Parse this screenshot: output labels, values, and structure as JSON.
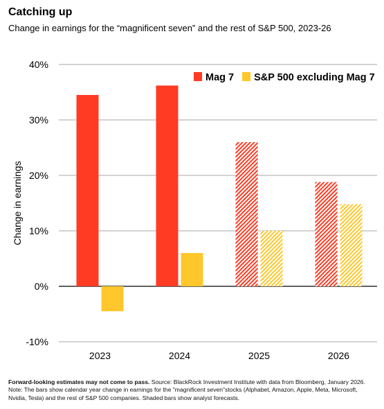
{
  "header": {
    "title": "Catching up",
    "subtitle": "Change in earnings for the “magnificent seven” and the rest of S&P 500, 2023-26"
  },
  "footnote": {
    "lead": "Forward-looking estimates may not come to pass.",
    "text": " Source: BlackRock Investment Institute with data from Bloomberg, January 2026. Note: The bars show calendar year change in earnings for the \"magnificent seven\"stocks (Alphabet, Amazon, Apple, Meta, Microsoft, Nvidia, Tesla) and the rest of S&P 500 companies. Shaded bars show analyst forecasts."
  },
  "chart_data": {
    "type": "bar",
    "categories": [
      "2023",
      "2024",
      "2025",
      "2026"
    ],
    "series": [
      {
        "name": "Mag 7",
        "values": [
          34.5,
          36.2,
          26.0,
          18.8
        ],
        "color": "#ff3b24"
      },
      {
        "name": "S&P 500 excluding Mag 7",
        "values": [
          -4.5,
          6.0,
          10.0,
          14.8
        ],
        "color": "#ffc72c"
      }
    ],
    "forecast_categories": [
      "2025",
      "2026"
    ],
    "ylabel": "Change in earnings",
    "xlabel": "",
    "ylim": [
      -10,
      40
    ],
    "yticks": [
      -10,
      0,
      10,
      20,
      30,
      40
    ],
    "ytick_labels": [
      "-10%",
      "0%",
      "10%",
      "20%",
      "30%",
      "40%"
    ],
    "grid": true,
    "legend_position": "top-right"
  }
}
